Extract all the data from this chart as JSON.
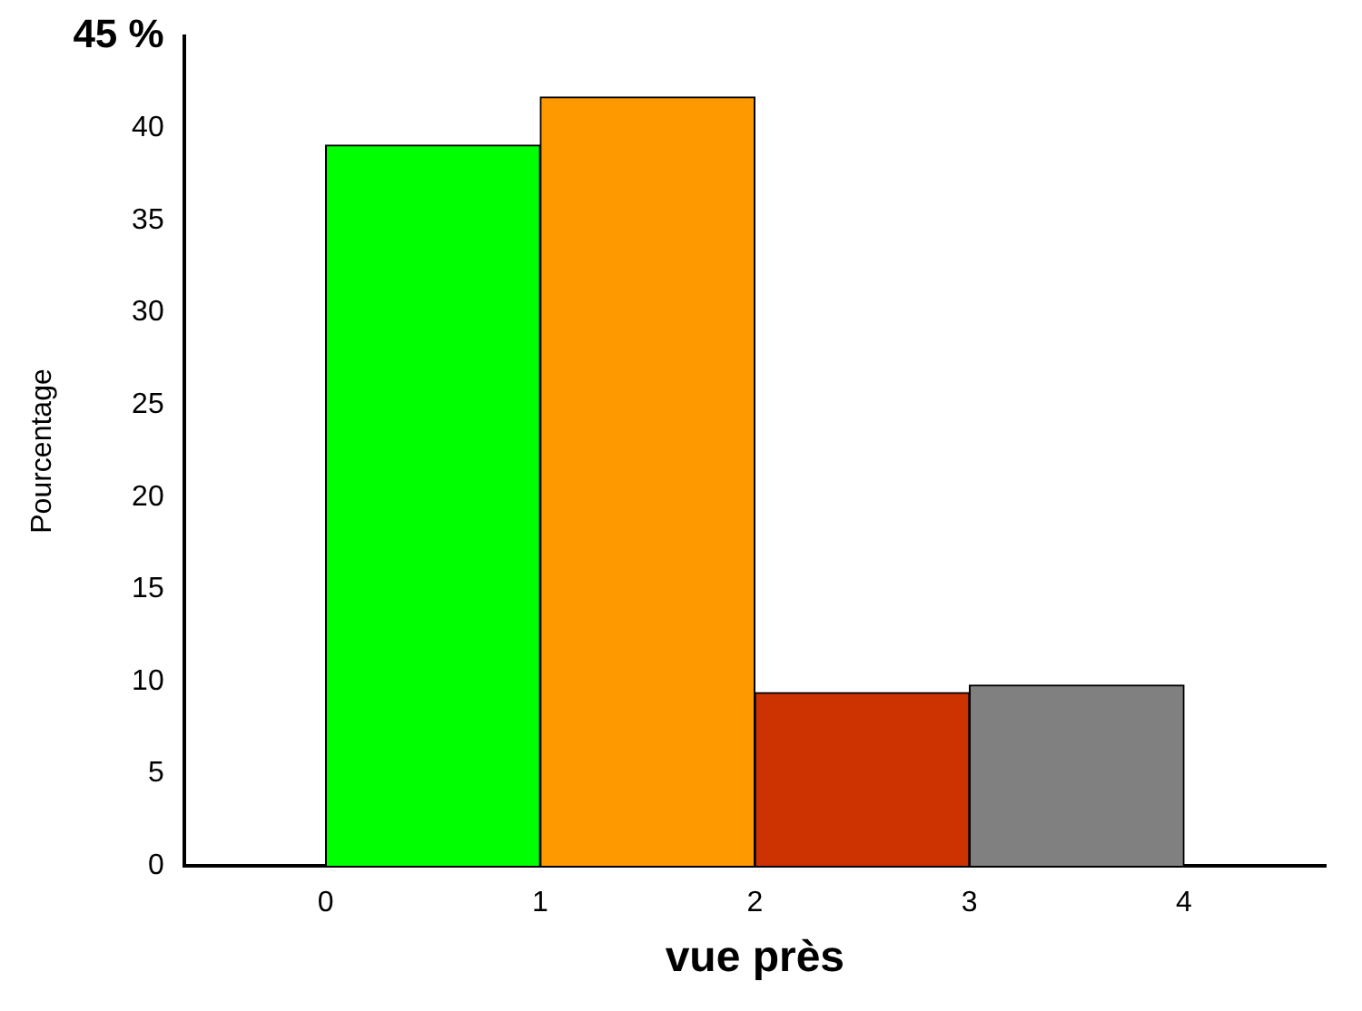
{
  "chart_data": {
    "type": "histogram",
    "xlabel": "vue près",
    "ylabel": "Pourcentage",
    "bins": [
      0,
      1,
      2,
      3,
      4
    ],
    "values": [
      39.1,
      41.7,
      9.4,
      9.8
    ],
    "colors": [
      "#00ff00",
      "#ff9900",
      "#cc3300",
      "#808080"
    ],
    "xlim": [
      -0.66,
      4.66
    ],
    "xticks": [
      0,
      1,
      2,
      3,
      4
    ],
    "ylim": [
      0,
      45
    ],
    "yticks": [
      0,
      5,
      10,
      15,
      20,
      25,
      30,
      35,
      40,
      {
        "value": 45,
        "label": "45 %"
      }
    ],
    "grid": false,
    "legend": false
  }
}
